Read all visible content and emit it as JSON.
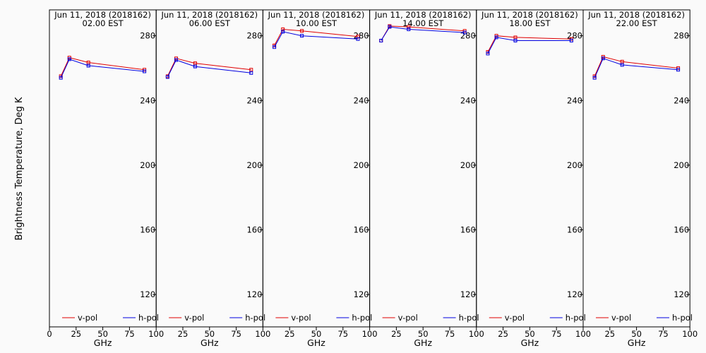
{
  "figure": {
    "ylabel": "Brightness Temperature, Deg K",
    "xlabel": "GHz",
    "legend": [
      {
        "label": "v-pol",
        "color": "#e00000"
      },
      {
        "label": "h-pol",
        "color": "#0000e0"
      }
    ],
    "colors": {
      "background": "#fafafa",
      "axis": "#000000",
      "vpol": "#e00000",
      "hpol": "#0000e0"
    }
  },
  "chart_data": [
    {
      "type": "line",
      "title": "Jun 11, 2018 (2018162)",
      "subtitle": "02.00 EST",
      "xlabel": "GHz",
      "ylabel": "Brightness Temperature, Deg K",
      "xlim": [
        0,
        100
      ],
      "ylim": [
        100,
        296
      ],
      "xticks": [
        0,
        25,
        50,
        75,
        100
      ],
      "yticks": [
        120,
        160,
        200,
        240,
        280
      ],
      "series": [
        {
          "name": "v-pol",
          "color": "#e00000",
          "points": [
            [
              10.7,
              255
            ],
            [
              18.7,
              266.5
            ],
            [
              36.5,
              263.5
            ],
            [
              89,
              259
            ]
          ]
        },
        {
          "name": "h-pol",
          "color": "#0000e0",
          "points": [
            [
              10.7,
              254
            ],
            [
              18.7,
              265.5
            ],
            [
              36.5,
              261.5
            ],
            [
              89,
              258
            ]
          ]
        }
      ]
    },
    {
      "type": "line",
      "title": "Jun 11, 2018 (2018162)",
      "subtitle": "06.00 EST",
      "xlabel": "GHz",
      "xlim": [
        0,
        100
      ],
      "ylim": [
        100,
        296
      ],
      "xticks": [
        25,
        50,
        75,
        100
      ],
      "yticks": [
        120,
        160,
        200,
        240,
        280
      ],
      "series": [
        {
          "name": "v-pol",
          "color": "#e00000",
          "points": [
            [
              10.7,
              255
            ],
            [
              18.7,
              266
            ],
            [
              36.5,
              263
            ],
            [
              89,
              259
            ]
          ]
        },
        {
          "name": "h-pol",
          "color": "#0000e0",
          "points": [
            [
              10.7,
              254.5
            ],
            [
              18.7,
              265
            ],
            [
              36.5,
              261
            ],
            [
              89,
              257
            ]
          ]
        }
      ]
    },
    {
      "type": "line",
      "title": "Jun 11, 2018 (2018162)",
      "subtitle": "10.00 EST",
      "xlabel": "GHz",
      "xlim": [
        0,
        100
      ],
      "ylim": [
        100,
        296
      ],
      "xticks": [
        25,
        50,
        75,
        100
      ],
      "yticks": [
        120,
        160,
        200,
        240,
        280
      ],
      "series": [
        {
          "name": "v-pol",
          "color": "#e00000",
          "points": [
            [
              10.7,
              274
            ],
            [
              18.7,
              284
            ],
            [
              36.5,
              283
            ],
            [
              89,
              279.5
            ]
          ]
        },
        {
          "name": "h-pol",
          "color": "#0000e0",
          "points": [
            [
              10.7,
              273
            ],
            [
              18.7,
              282.5
            ],
            [
              36.5,
              280
            ],
            [
              89,
              278
            ]
          ]
        }
      ]
    },
    {
      "type": "line",
      "title": "Jun 11, 2018 (2018162)",
      "subtitle": "14.00 EST",
      "xlabel": "GHz",
      "xlim": [
        0,
        100
      ],
      "ylim": [
        100,
        296
      ],
      "xticks": [
        25,
        50,
        75,
        100
      ],
      "yticks": [
        120,
        160,
        200,
        240,
        280
      ],
      "series": [
        {
          "name": "v-pol",
          "color": "#e00000",
          "points": [
            [
              10.7,
              277
            ],
            [
              18.7,
              286
            ],
            [
              36.5,
              285.5
            ],
            [
              89,
              283
            ]
          ]
        },
        {
          "name": "h-pol",
          "color": "#0000e0",
          "points": [
            [
              10.7,
              277
            ],
            [
              18.7,
              285.5
            ],
            [
              36.5,
              284
            ],
            [
              89,
              282
            ]
          ]
        }
      ]
    },
    {
      "type": "line",
      "title": "Jun 11, 2018 (2018162)",
      "subtitle": "18.00 EST",
      "xlabel": "GHz",
      "xlim": [
        0,
        100
      ],
      "ylim": [
        100,
        296
      ],
      "xticks": [
        25,
        50,
        75,
        100
      ],
      "yticks": [
        120,
        160,
        200,
        240,
        280
      ],
      "series": [
        {
          "name": "v-pol",
          "color": "#e00000",
          "points": [
            [
              10.7,
              270
            ],
            [
              18.7,
              280
            ],
            [
              36.5,
              279
            ],
            [
              89,
              278
            ]
          ]
        },
        {
          "name": "h-pol",
          "color": "#0000e0",
          "points": [
            [
              10.7,
              269
            ],
            [
              18.7,
              279
            ],
            [
              36.5,
              277
            ],
            [
              89,
              277
            ]
          ]
        }
      ]
    },
    {
      "type": "line",
      "title": "Jun 11, 2018 (2018162)",
      "subtitle": "22.00 EST",
      "xlabel": "GHz",
      "xlim": [
        0,
        100
      ],
      "ylim": [
        100,
        296
      ],
      "xticks": [
        25,
        50,
        75,
        100
      ],
      "yticks": [
        120,
        160,
        200,
        240,
        280
      ],
      "series": [
        {
          "name": "v-pol",
          "color": "#e00000",
          "points": [
            [
              10.7,
              255
            ],
            [
              18.7,
              267
            ],
            [
              36.5,
              264
            ],
            [
              89,
              260
            ]
          ]
        },
        {
          "name": "h-pol",
          "color": "#0000e0",
          "points": [
            [
              10.7,
              254
            ],
            [
              18.7,
              266
            ],
            [
              36.5,
              262
            ],
            [
              89,
              259
            ]
          ]
        }
      ]
    }
  ]
}
